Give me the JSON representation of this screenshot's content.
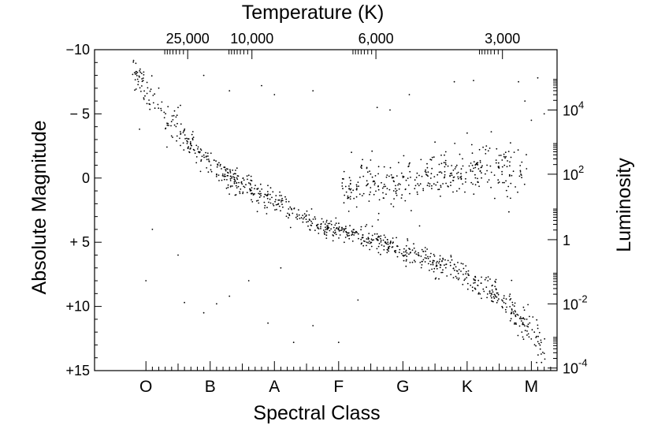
{
  "chart_data": {
    "type": "scatter",
    "title": "",
    "top_axis_label": "Temperature (K)",
    "xlabel": "Spectral Class",
    "ylabel": "Absolute Magnitude",
    "right_axis_label": "Luminosity",
    "grid": false,
    "legend": "none",
    "spectral_classes": [
      "O",
      "B",
      "A",
      "F",
      "G",
      "K",
      "M"
    ],
    "x_range_spectral_index": [
      -0.8,
      6.4
    ],
    "ylim": [
      15,
      -10
    ],
    "y_ticks": [
      {
        "value": -10,
        "label": "−10"
      },
      {
        "value": -5,
        "label": "− 5"
      },
      {
        "value": 0,
        "label": "0"
      },
      {
        "value": 5,
        "label": "+ 5"
      },
      {
        "value": 10,
        "label": "+10"
      },
      {
        "value": 15,
        "label": "+15"
      }
    ],
    "temperature_ticks": [
      {
        "label": "25,000",
        "spectral_index": 0.65
      },
      {
        "label": "10,000",
        "spectral_index": 1.65
      },
      {
        "label": "6,000",
        "spectral_index": 3.58
      },
      {
        "label": "3,000",
        "spectral_index": 5.55
      }
    ],
    "luminosity_ticks": [
      {
        "magnitude": -5.3,
        "base": "10",
        "exp": "4"
      },
      {
        "magnitude": -0.3,
        "base": "10",
        "exp": "2"
      },
      {
        "magnitude": 4.8,
        "base": "1",
        "exp": ""
      },
      {
        "magnitude": 9.8,
        "base": "10",
        "exp": "-2"
      },
      {
        "magnitude": 14.8,
        "base": "10",
        "exp": "-4"
      }
    ],
    "main_sequence_trend": [
      {
        "x": -0.2,
        "y": -8.5
      },
      {
        "x": 0.3,
        "y": -4.5
      },
      {
        "x": 0.8,
        "y": -2.0
      },
      {
        "x": 1.3,
        "y": 0.0
      },
      {
        "x": 1.9,
        "y": 1.5
      },
      {
        "x": 2.4,
        "y": 3.0
      },
      {
        "x": 2.9,
        "y": 4.0
      },
      {
        "x": 3.3,
        "y": 4.5
      },
      {
        "x": 3.8,
        "y": 5.2
      },
      {
        "x": 4.3,
        "y": 6.2
      },
      {
        "x": 4.8,
        "y": 7.2
      },
      {
        "x": 5.3,
        "y": 8.5
      },
      {
        "x": 5.7,
        "y": 10.0
      },
      {
        "x": 6.0,
        "y": 12.0
      },
      {
        "x": 6.2,
        "y": 13.5
      }
    ],
    "giant_branch_trend": [
      {
        "x": 3.0,
        "y": 0.5
      },
      {
        "x": 3.8,
        "y": 0.5
      },
      {
        "x": 4.5,
        "y": 0.0
      },
      {
        "x": 5.0,
        "y": -0.5
      },
      {
        "x": 5.5,
        "y": -0.8
      },
      {
        "x": 5.9,
        "y": -0.8
      }
    ],
    "scattered_stars": [
      {
        "x": -0.1,
        "y": -3.8
      },
      {
        "x": 0.2,
        "y": -7.0
      },
      {
        "x": 0.5,
        "y": -5.5
      },
      {
        "x": 0.9,
        "y": -8.0
      },
      {
        "x": 1.3,
        "y": -6.8
      },
      {
        "x": 1.8,
        "y": -7.2
      },
      {
        "x": 2.0,
        "y": -6.5
      },
      {
        "x": 2.6,
        "y": -6.8
      },
      {
        "x": 3.2,
        "y": -2.0
      },
      {
        "x": 3.6,
        "y": -5.5
      },
      {
        "x": 3.8,
        "y": -5.3
      },
      {
        "x": 4.1,
        "y": -6.5
      },
      {
        "x": 4.5,
        "y": -2.8
      },
      {
        "x": 4.8,
        "y": -7.5
      },
      {
        "x": 5.0,
        "y": -3.5
      },
      {
        "x": 5.1,
        "y": -7.6
      },
      {
        "x": 5.3,
        "y": -2.5
      },
      {
        "x": 5.6,
        "y": -2.0
      },
      {
        "x": 5.8,
        "y": -7.5
      },
      {
        "x": 5.9,
        "y": -6.0
      },
      {
        "x": 6.0,
        "y": -4.5
      },
      {
        "x": 6.1,
        "y": -7.8
      },
      {
        "x": 6.2,
        "y": -5.0
      },
      {
        "x": 0.1,
        "y": 4.0
      },
      {
        "x": 0.5,
        "y": 6.0
      },
      {
        "x": 0.0,
        "y": 8.0
      },
      {
        "x": 0.6,
        "y": 9.7
      },
      {
        "x": 0.9,
        "y": 10.5
      },
      {
        "x": 1.1,
        "y": 9.8
      },
      {
        "x": 1.3,
        "y": 9.2
      },
      {
        "x": 1.6,
        "y": 8.0
      },
      {
        "x": 1.9,
        "y": 11.3
      },
      {
        "x": 2.3,
        "y": 12.8
      },
      {
        "x": 2.6,
        "y": 11.5
      },
      {
        "x": 3.0,
        "y": 12.8
      },
      {
        "x": 3.3,
        "y": 9.5
      },
      {
        "x": 2.1,
        "y": 7.0
      }
    ]
  }
}
